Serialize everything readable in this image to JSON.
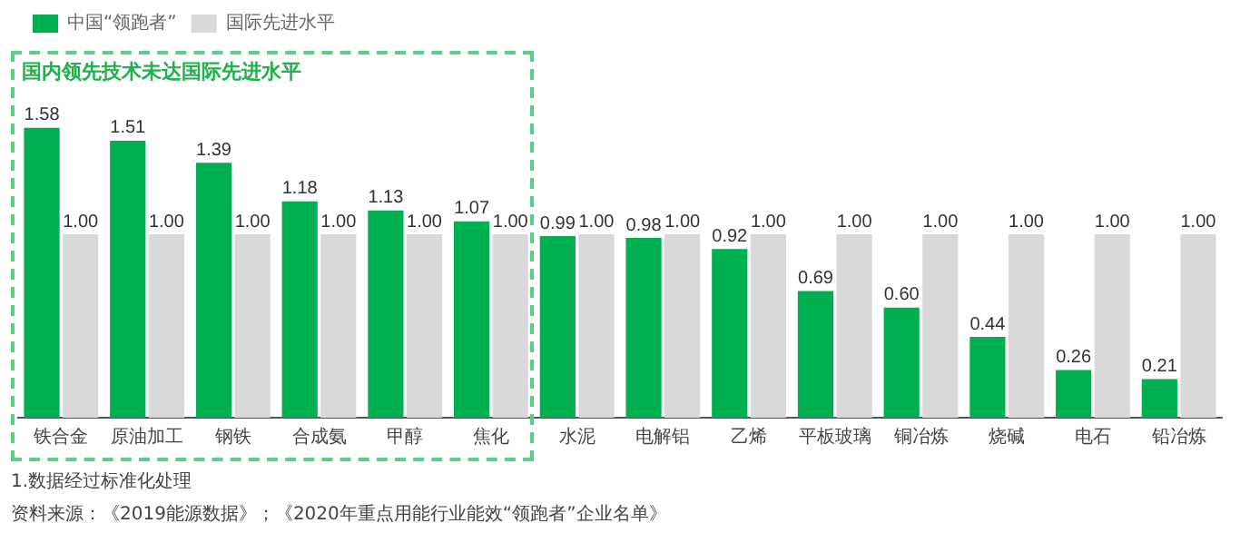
{
  "chart_data": {
    "type": "bar",
    "categories": [
      "铁合金",
      "原油加工",
      "钢铁",
      "合成氨",
      "甲醇",
      "焦化",
      "水泥",
      "电解铝",
      "乙烯",
      "平板玻璃",
      "铜冶炼",
      "烧碱",
      "电石",
      "铅冶炼"
    ],
    "series": [
      {
        "name": "中国“领跑者”",
        "color": "#00b050",
        "values": [
          1.58,
          1.51,
          1.39,
          1.18,
          1.13,
          1.07,
          0.99,
          0.98,
          0.92,
          0.69,
          0.6,
          0.44,
          0.26,
          0.21
        ],
        "value_labels": [
          "1.58",
          "1.51",
          "1.39",
          "1.18",
          "1.13",
          "1.07",
          "0.99",
          "0.98",
          "0.92",
          "0.69",
          "0.60",
          "0.44",
          "0.26",
          "0.21"
        ]
      },
      {
        "name": "国际先进水平",
        "color": "#d9d9d9",
        "values": [
          1,
          1,
          1,
          1,
          1,
          1,
          1,
          1,
          1,
          1,
          1,
          1,
          1,
          1
        ],
        "value_labels": [
          "1.00",
          "1.00",
          "1.00",
          "1.00",
          "1.00",
          "1.00",
          "1.00",
          "1.00",
          "1.00",
          "1.00",
          "1.00",
          "1.00",
          "1.00",
          "1.00"
        ]
      }
    ],
    "legend": "top left",
    "grid": false,
    "tick_labels": "x",
    "annotations": [
      "国内领先技术未达国际先进水平",
      "1.数据经过标准化处理",
      "资料来源：《2019能源数据》；《2020年重点用能行业能效“领跑者”企业名单》"
    ]
  }
}
